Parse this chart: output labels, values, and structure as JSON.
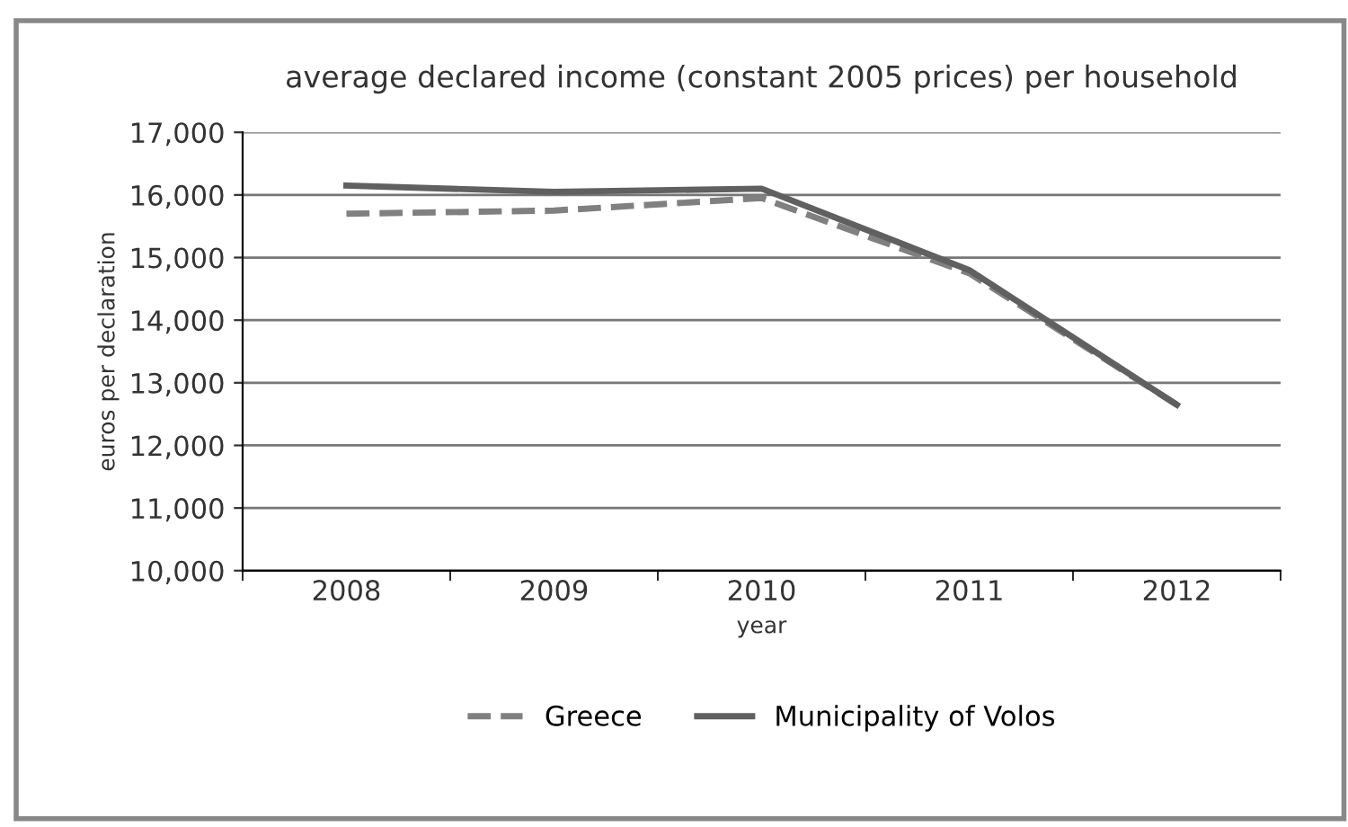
{
  "chart_data": {
    "type": "line",
    "title": "average declared income (constant 2005 prices) per household",
    "xlabel": "year",
    "ylabel": "euros per declaration",
    "categories": [
      "2008",
      "2009",
      "2010",
      "2011",
      "2012"
    ],
    "series": [
      {
        "name": "Greece",
        "color": "#808080",
        "line_style": "dashed",
        "values": [
          15700,
          15750,
          15950,
          14750,
          12650
        ]
      },
      {
        "name": "Municipality of Volos",
        "color": "#606060",
        "line_style": "solid",
        "values": [
          16150,
          16050,
          16100,
          14800,
          12650
        ]
      }
    ],
    "ylim": [
      10000,
      17000
    ],
    "yticks": [
      {
        "value": 10000,
        "label": "10,000"
      },
      {
        "value": 11000,
        "label": "11,000"
      },
      {
        "value": 12000,
        "label": "12,000"
      },
      {
        "value": 13000,
        "label": "13,000"
      },
      {
        "value": 14000,
        "label": "14,000"
      },
      {
        "value": 15000,
        "label": "15,000"
      },
      {
        "value": 16000,
        "label": "16,000"
      },
      {
        "value": 17000,
        "label": "17,000"
      }
    ],
    "grid": "y",
    "legend": "bottom"
  }
}
